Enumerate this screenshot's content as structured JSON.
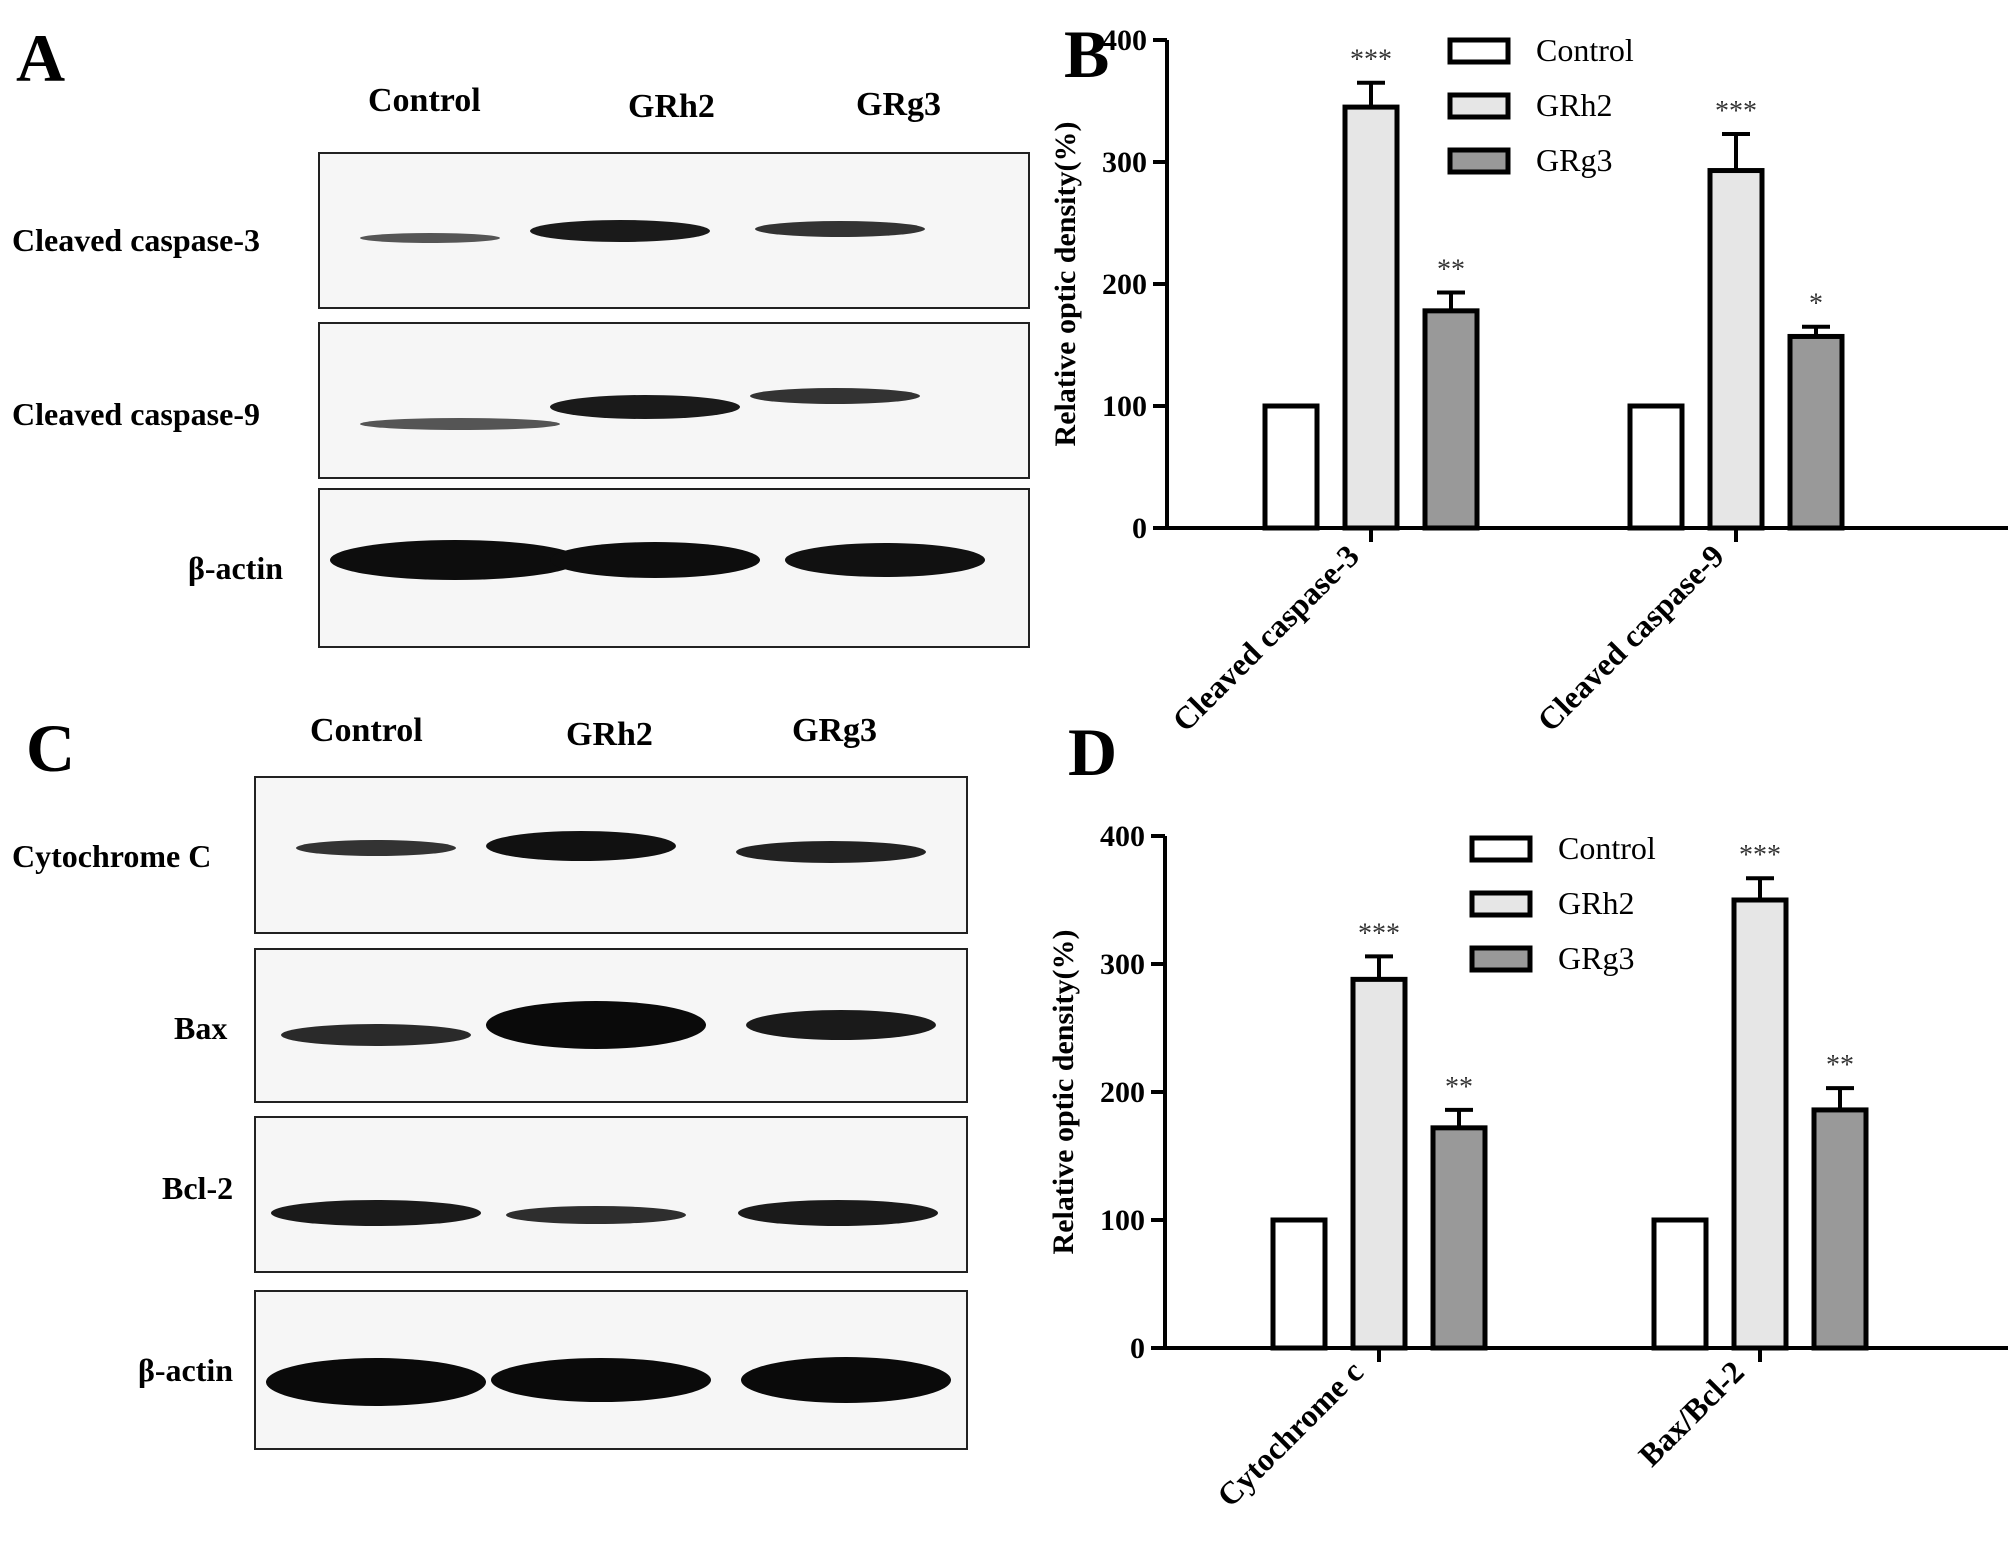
{
  "panels": {
    "A": {
      "letter": "A",
      "lanes": [
        "Control",
        "GRh2",
        "GRg3"
      ],
      "rows": [
        {
          "label": "Cleaved caspase-3",
          "intensity": [
            0.2,
            0.85,
            0.55
          ]
        },
        {
          "label": "Cleaved caspase-9",
          "intensity": [
            0.25,
            0.85,
            0.6
          ]
        },
        {
          "label": "β-actin",
          "intensity": [
            1.0,
            1.0,
            0.95
          ]
        }
      ]
    },
    "B": {
      "letter": "B"
    },
    "C": {
      "letter": "C",
      "lanes": [
        "Control",
        "GRh2",
        "GRg3"
      ],
      "rows": [
        {
          "label": "Cytochrome C",
          "intensity": [
            0.45,
            0.95,
            0.7
          ]
        },
        {
          "label": "Bax",
          "intensity": [
            0.55,
            1.0,
            0.8
          ]
        },
        {
          "label": "Bcl-2",
          "intensity": [
            0.8,
            0.6,
            0.85
          ]
        },
        {
          "label": "β-actin",
          "intensity": [
            1.0,
            1.0,
            1.0
          ]
        }
      ]
    },
    "D": {
      "letter": "D"
    }
  },
  "chart_data": [
    {
      "type": "bar",
      "panel": "B",
      "title": "",
      "xlabel": "",
      "ylabel": "Relative optic density(%)",
      "ylim": [
        0,
        400
      ],
      "yticks": [
        "0",
        "100",
        "200",
        "300",
        "400"
      ],
      "categories": [
        "Cleaved caspase-3",
        "Cleaved caspase-9"
      ],
      "series": [
        {
          "name": "Control",
          "values": [
            100,
            100
          ],
          "errors": [
            0,
            0
          ],
          "sig": [
            "",
            ""
          ],
          "color": "#ffffff"
        },
        {
          "name": "GRh2",
          "values": [
            345,
            293
          ],
          "errors": [
            20,
            30
          ],
          "sig": [
            "***",
            "***"
          ],
          "color": "#e6e6e6"
        },
        {
          "name": "GRg3",
          "values": [
            178,
            157
          ],
          "errors": [
            15,
            8
          ],
          "sig": [
            "**",
            "*"
          ],
          "color": "#999999"
        }
      ],
      "legend_position": "top-right",
      "grid": false
    },
    {
      "type": "bar",
      "panel": "D",
      "title": "",
      "xlabel": "",
      "ylabel": "Relative optic density(%)",
      "ylim": [
        0,
        400
      ],
      "yticks": [
        "0",
        "100",
        "200",
        "300",
        "400"
      ],
      "categories": [
        "Cytochrome c",
        "Bax/Bcl-2"
      ],
      "series": [
        {
          "name": "Control",
          "values": [
            100,
            100
          ],
          "errors": [
            0,
            0
          ],
          "sig": [
            "",
            ""
          ],
          "color": "#ffffff"
        },
        {
          "name": "GRh2",
          "values": [
            288,
            350
          ],
          "errors": [
            18,
            17
          ],
          "sig": [
            "***",
            "***"
          ],
          "color": "#e6e6e6"
        },
        {
          "name": "GRg3",
          "values": [
            172,
            186
          ],
          "errors": [
            14,
            17
          ],
          "sig": [
            "**",
            "**"
          ],
          "color": "#999999"
        }
      ],
      "legend_position": "top-right",
      "grid": false
    }
  ]
}
